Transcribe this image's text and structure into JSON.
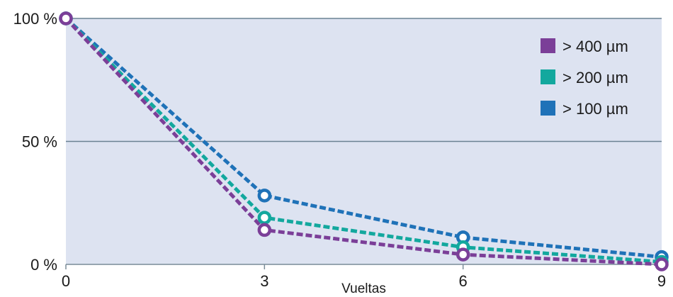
{
  "chart_data": {
    "type": "line",
    "xlabel": "Vueltas",
    "ylabel": "",
    "x": [
      0,
      3,
      6,
      9
    ],
    "x_tick_labels": [
      "0",
      "3",
      "6",
      "9"
    ],
    "y_tick_labels": [
      "100 %",
      "50 %",
      "0 %"
    ],
    "y_ticks": [
      100,
      50,
      0
    ],
    "xlim": [
      0,
      9
    ],
    "ylim": [
      0,
      100
    ],
    "grid": "horizontal",
    "legend_position": "top-right",
    "series": [
      {
        "name": "> 400 µm",
        "color": "#7b3f98",
        "values": [
          100,
          14,
          4,
          0
        ]
      },
      {
        "name": "> 200 µm",
        "color": "#13a89e",
        "values": [
          100,
          19,
          7,
          1
        ]
      },
      {
        "name": "> 100 µm",
        "color": "#1f72b8",
        "values": [
          100,
          28,
          11,
          3
        ]
      }
    ],
    "colors": {
      "plot_background": "#dde3f1",
      "gridline": "#6b8293",
      "axis": "#7a8c99"
    }
  }
}
